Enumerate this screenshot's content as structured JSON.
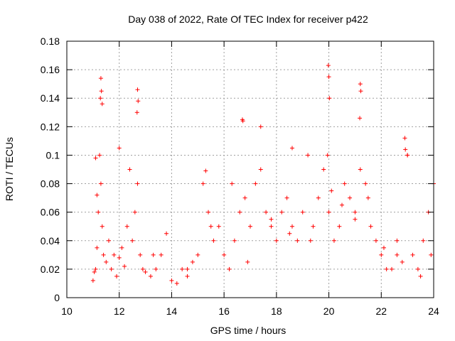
{
  "chart_data": {
    "type": "scatter",
    "title": "Day 038 of 2022, Rate Of TEC Index for receiver p422",
    "xlabel": "GPS time / hours",
    "ylabel": "ROTI / TECUs",
    "xlim": [
      10,
      24
    ],
    "ylim": [
      0,
      0.18
    ],
    "xticks": [
      10,
      12,
      14,
      16,
      18,
      20,
      22,
      24
    ],
    "yticks": [
      0,
      0.02,
      0.04,
      0.06,
      0.08,
      0.1,
      0.12,
      0.14,
      0.16,
      0.18
    ],
    "ytick_labels": [
      "0",
      "0.02",
      "0.04",
      "0.06",
      "0.08",
      "0.1",
      "0.12",
      "0.14",
      "0.16",
      "0.18"
    ],
    "grid": true,
    "marker": "plus",
    "color": "#ff0000",
    "series": [
      {
        "x": [
          11.0,
          11.05,
          11.1,
          11.15,
          11.2,
          11.25,
          11.3,
          11.35,
          11.4,
          11.5,
          11.6,
          11.7,
          11.8,
          11.9,
          12.0,
          12.1,
          12.2,
          12.3,
          12.4,
          12.5,
          12.6,
          12.7,
          12.8,
          12.9,
          13.0,
          13.2,
          13.4,
          13.6,
          13.8,
          14.0,
          14.2,
          14.4,
          14.6,
          14.8,
          15.0,
          15.2,
          15.4,
          15.6,
          15.8,
          16.0,
          16.2,
          16.4,
          16.6,
          16.8,
          17.0,
          17.2,
          17.4,
          17.6,
          17.8,
          18.0,
          18.2,
          18.4,
          18.6,
          18.8,
          19.0,
          19.2,
          19.4,
          19.6,
          19.8,
          19.95,
          20.0,
          20.2,
          20.4,
          20.6,
          20.8,
          21.0,
          21.2,
          21.4,
          21.6,
          21.8,
          22.0,
          22.2,
          22.4,
          22.6,
          22.8,
          23.0,
          23.2,
          23.4,
          23.6,
          23.8,
          24.0,
          11.3,
          11.32,
          11.28,
          11.35,
          12.7,
          12.72,
          12.68,
          19.98,
          20.0,
          20.02,
          21.2,
          21.22,
          21.18,
          16.7,
          16.72,
          17.4,
          12.0,
          15.3,
          22.9,
          22.92,
          18.6,
          23.0,
          16.3,
          11.1,
          11.15,
          13.3,
          14.6,
          15.5,
          16.9,
          17.8,
          18.5,
          19.3,
          20.1,
          20.5,
          21.0,
          21.5,
          22.1,
          22.6,
          23.5,
          23.9
        ],
        "y": [
          0.012,
          0.018,
          0.02,
          0.035,
          0.06,
          0.1,
          0.08,
          0.05,
          0.03,
          0.025,
          0.04,
          0.02,
          0.03,
          0.015,
          0.028,
          0.035,
          0.022,
          0.05,
          0.09,
          0.04,
          0.06,
          0.08,
          0.03,
          0.02,
          0.018,
          0.015,
          0.02,
          0.03,
          0.045,
          0.012,
          0.01,
          0.02,
          0.015,
          0.025,
          0.03,
          0.08,
          0.06,
          0.04,
          0.05,
          0.03,
          0.02,
          0.04,
          0.06,
          0.07,
          0.05,
          0.08,
          0.09,
          0.06,
          0.05,
          0.04,
          0.06,
          0.07,
          0.05,
          0.04,
          0.06,
          0.1,
          0.05,
          0.07,
          0.09,
          0.1,
          0.06,
          0.04,
          0.05,
          0.08,
          0.07,
          0.06,
          0.09,
          0.08,
          0.05,
          0.04,
          0.03,
          0.02,
          0.02,
          0.03,
          0.025,
          0.1,
          0.03,
          0.02,
          0.04,
          0.06,
          0.08,
          0.154,
          0.145,
          0.14,
          0.136,
          0.146,
          0.138,
          0.13,
          0.163,
          0.155,
          0.14,
          0.15,
          0.145,
          0.126,
          0.125,
          0.124,
          0.12,
          0.105,
          0.089,
          0.112,
          0.104,
          0.105,
          0.1,
          0.08,
          0.098,
          0.072,
          0.03,
          0.02,
          0.05,
          0.025,
          0.055,
          0.045,
          0.04,
          0.075,
          0.065,
          0.055,
          0.07,
          0.035,
          0.04,
          0.015,
          0.03
        ]
      }
    ]
  }
}
